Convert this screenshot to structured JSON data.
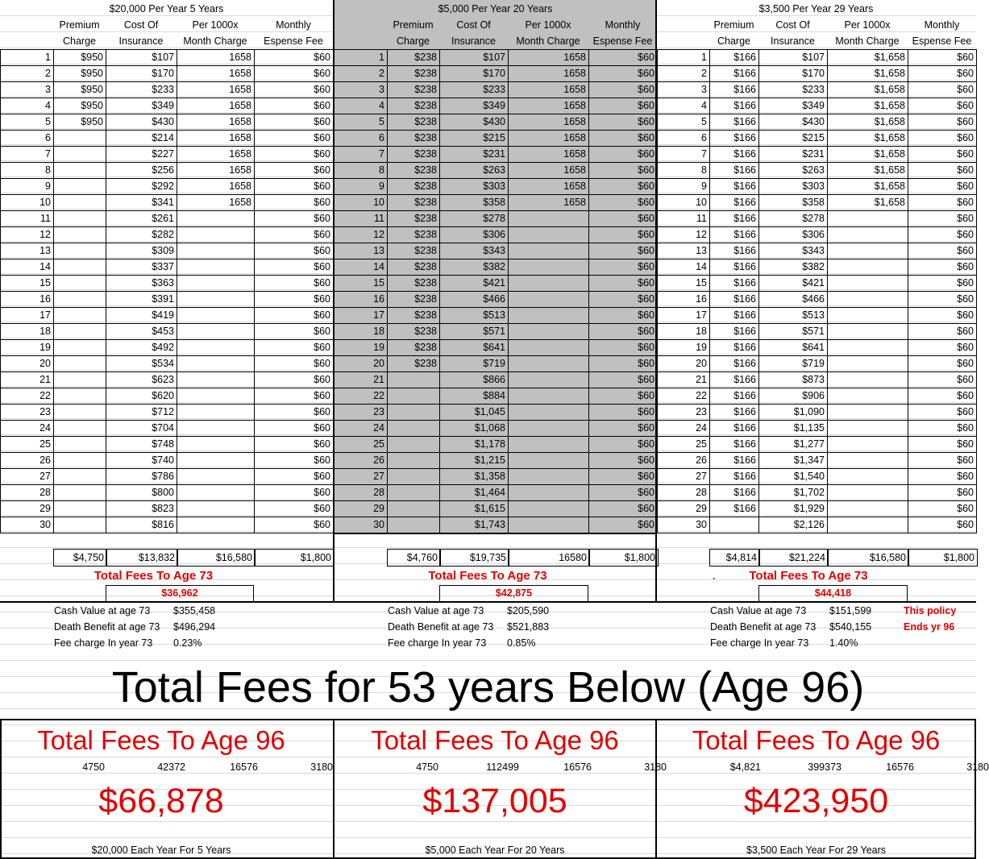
{
  "panels": [
    {
      "title": "$20,000 Per Year 5 Years",
      "headers": [
        [
          "Premium",
          "Charge"
        ],
        [
          "Cost Of",
          "Insurance"
        ],
        [
          "Per 1000x",
          "Month Charge"
        ],
        [
          "Monthly",
          "Espense Fee"
        ]
      ],
      "premium": [
        "$950",
        "$950",
        "$950",
        "$950",
        "$950",
        "",
        "",
        "",
        "",
        "",
        "",
        "",
        "",
        "",
        "",
        "",
        "",
        "",
        "",
        "",
        "",
        "",
        "",
        "",
        "",
        "",
        "",
        "",
        "",
        ""
      ],
      "coi": [
        "$107",
        "$170",
        "$233",
        "$349",
        "$430",
        "$214",
        "$227",
        "$256",
        "$292",
        "$341",
        "$261",
        "$282",
        "$309",
        "$337",
        "$363",
        "$391",
        "$419",
        "$453",
        "$492",
        "$534",
        "$623",
        "$620",
        "$712",
        "$704",
        "$748",
        "$740",
        "$786",
        "$800",
        "$823",
        "$816"
      ],
      "per1000": [
        "1658",
        "1658",
        "1658",
        "1658",
        "1658",
        "1658",
        "1658",
        "1658",
        "1658",
        "1658",
        "",
        "",
        "",
        "",
        "",
        "",
        "",
        "",
        "",
        "",
        "",
        "",
        "",
        "",
        "",
        "",
        "",
        "",
        "",
        ""
      ],
      "fee": "$60",
      "totals": [
        "$4,750",
        "$13,832",
        "$16,580",
        "$1,800"
      ],
      "fees_label": "Total Fees To Age 73",
      "fees_value": "$36,962",
      "prefix": "",
      "stats": [
        [
          "Cash Value at age 73",
          "$355,458"
        ],
        [
          "Death Benefit at age 73",
          "$496,294"
        ],
        [
          "Fee charge In year 73",
          "0.23%"
        ]
      ],
      "note": [
        "",
        ""
      ],
      "age96_label": "Total Fees To Age 96",
      "age96_parts": [
        "4750",
        "42372",
        "16576",
        "3180"
      ],
      "age96_value": "$66,878",
      "footer": "$20,000 Each Year For 5 Years"
    },
    {
      "title": "$5,000 Per Year 20 Years",
      "headers": [
        [
          "Premium",
          "Charge"
        ],
        [
          "Cost Of",
          "Insurance"
        ],
        [
          "Per 1000x",
          "Month Charge"
        ],
        [
          "Monthly",
          "Espense Fee"
        ]
      ],
      "premium": [
        "$238",
        "$238",
        "$238",
        "$238",
        "$238",
        "$238",
        "$238",
        "$238",
        "$238",
        "$238",
        "$238",
        "$238",
        "$238",
        "$238",
        "$238",
        "$238",
        "$238",
        "$238",
        "$238",
        "$238",
        "",
        "",
        "",
        "",
        "",
        "",
        "",
        "",
        "",
        ""
      ],
      "coi": [
        "$107",
        "$170",
        "$233",
        "$349",
        "$430",
        "$215",
        "$231",
        "$263",
        "$303",
        "$358",
        "$278",
        "$306",
        "$343",
        "$382",
        "$421",
        "$466",
        "$513",
        "$571",
        "$641",
        "$719",
        "$866",
        "$884",
        "$1,045",
        "$1,068",
        "$1,178",
        "$1,215",
        "$1,358",
        "$1,464",
        "$1,615",
        "$1,743"
      ],
      "per1000": [
        "1658",
        "1658",
        "1658",
        "1658",
        "1658",
        "1658",
        "1658",
        "1658",
        "1658",
        "1658",
        "",
        "",
        "",
        "",
        "",
        "",
        "",
        "",
        "",
        "",
        "",
        "",
        "",
        "",
        "",
        "",
        "",
        "",
        "",
        ""
      ],
      "fee": "$60",
      "totals": [
        "$4,760",
        "$19,735",
        "16580",
        "$1,800"
      ],
      "fees_label": "Total Fees To Age 73",
      "fees_value": "$42,875",
      "prefix": "",
      "stats": [
        [
          "Cash Value at age 73",
          "$205,590"
        ],
        [
          "Death Benefit at age 73",
          "$521,883"
        ],
        [
          "Fee charge In year 73",
          "0.85%"
        ]
      ],
      "note": [
        "",
        ""
      ],
      "age96_label": "Total Fees To Age 96",
      "age96_parts": [
        "4750",
        "112499",
        "16576",
        "3180"
      ],
      "age96_value": "$137,005",
      "footer": "$5,000 Each Year For 20 Years"
    },
    {
      "title": "$3,500 Per Year 29 Years",
      "headers": [
        [
          "Premium",
          "Charge"
        ],
        [
          "Cost Of",
          "Insurance"
        ],
        [
          "Per 1000x",
          "Month Charge"
        ],
        [
          "Monthly",
          "Espense Fee"
        ]
      ],
      "premium": [
        "$166",
        "$166",
        "$166",
        "$166",
        "$166",
        "$166",
        "$166",
        "$166",
        "$166",
        "$166",
        "$166",
        "$166",
        "$166",
        "$166",
        "$166",
        "$166",
        "$166",
        "$166",
        "$166",
        "$166",
        "$166",
        "$166",
        "$166",
        "$166",
        "$166",
        "$166",
        "$166",
        "$166",
        "$166",
        ""
      ],
      "coi": [
        "$107",
        "$170",
        "$233",
        "$349",
        "$430",
        "$215",
        "$231",
        "$263",
        "$303",
        "$358",
        "$278",
        "$306",
        "$343",
        "$382",
        "$421",
        "$466",
        "$513",
        "$571",
        "$641",
        "$719",
        "$873",
        "$906",
        "$1,090",
        "$1,135",
        "$1,277",
        "$1,347",
        "$1,540",
        "$1,702",
        "$1,929",
        "$2,126"
      ],
      "per1000": [
        "$1,658",
        "$1,658",
        "$1,658",
        "$1,658",
        "$1,658",
        "$1,658",
        "$1,658",
        "$1,658",
        "$1,658",
        "$1,658",
        "",
        "",
        "",
        "",
        "",
        "",
        "",
        "",
        "",
        "",
        "",
        "",
        "",
        "",
        "",
        "",
        "",
        "",
        "",
        ""
      ],
      "fee": "$60",
      "totals": [
        "$4,814",
        "$21,224",
        "$16,580",
        "$1,800"
      ],
      "fees_label": "Total Fees To Age 73",
      "fees_value": "$44,418",
      "prefix": ".",
      "stats": [
        [
          "Cash Value at age 73",
          "$151,599"
        ],
        [
          "Death Benefit at age 73",
          "$540,155"
        ],
        [
          "Fee charge In year 73",
          "1.40%"
        ]
      ],
      "note": [
        "This policy",
        "Ends yr 96"
      ],
      "age96_label": "Total Fees To Age 96",
      "age96_parts": [
        "$4,821",
        "399373",
        "16576",
        "3180"
      ],
      "age96_value": "$423,950",
      "footer": "$3,500 Each Year For 29 Years"
    }
  ],
  "big_title": "Total Fees for 53 years Below (Age 96)"
}
